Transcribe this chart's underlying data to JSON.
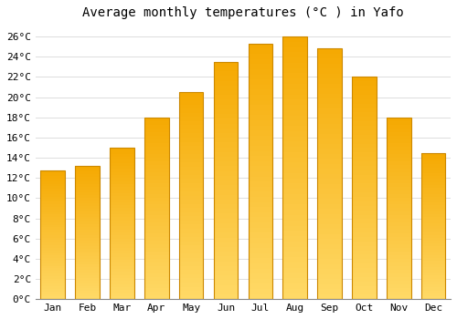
{
  "title": "Average monthly temperatures (°C ) in Yafo",
  "months": [
    "Jan",
    "Feb",
    "Mar",
    "Apr",
    "May",
    "Jun",
    "Jul",
    "Aug",
    "Sep",
    "Oct",
    "Nov",
    "Dec"
  ],
  "values": [
    12.7,
    13.2,
    15.0,
    18.0,
    20.5,
    23.5,
    25.3,
    26.0,
    24.8,
    22.0,
    18.0,
    14.5
  ],
  "bar_color_top": "#FFD966",
  "bar_color_bottom": "#F5A800",
  "bar_edge_color": "#CC8800",
  "background_color": "#FFFFFF",
  "grid_color": "#DDDDDD",
  "ylim": [
    0,
    27
  ],
  "ytick_step": 2,
  "title_fontsize": 10,
  "tick_fontsize": 8,
  "font_family": "monospace"
}
